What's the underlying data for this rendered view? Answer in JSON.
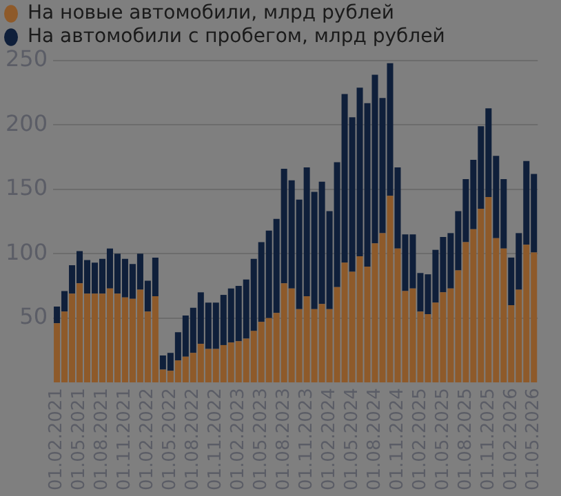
{
  "chart_data": {
    "type": "bar",
    "stacked": true,
    "categories": [
      "01.02.2021",
      null,
      null,
      "01.05.2021",
      null,
      null,
      "01.08.2021",
      null,
      null,
      "01.11.2021",
      null,
      null,
      "01.02.2022",
      null,
      null,
      "01.05.2022",
      null,
      null,
      "01.08.2022",
      null,
      null,
      "01.11.2022",
      null,
      null,
      "01.02.2023",
      null,
      null,
      "01.05.2023",
      null,
      null,
      "01.08.2023",
      null,
      null,
      "01.11.2023",
      null,
      null,
      "01.02.2024",
      null,
      null,
      "01.05.2024",
      null,
      null,
      "01.08.2024",
      null,
      null,
      "01.11.2024",
      null,
      null,
      "01.02.2025",
      null,
      null,
      "01.05.2025",
      null,
      null,
      "01.08.2025",
      null,
      null,
      "01.11.2025",
      null,
      null,
      "01.02.2026",
      null,
      null,
      "01.05.2026"
    ],
    "series": [
      {
        "name": "На новые автомобили, млрд рублей",
        "color": "#8e5a2a",
        "values": [
          46,
          55,
          69,
          77,
          69,
          69,
          69,
          73,
          69,
          66,
          65,
          72,
          55,
          67,
          10,
          9,
          17,
          20,
          23,
          30,
          26,
          26,
          29,
          31,
          32,
          34,
          40,
          47,
          50,
          54,
          77,
          73,
          57,
          67,
          57,
          61,
          57,
          74,
          93,
          86,
          98,
          90,
          108,
          116,
          145,
          104,
          71,
          73,
          55,
          53,
          62,
          70,
          73,
          87,
          109,
          119,
          135,
          144,
          112,
          104,
          60,
          72,
          107,
          101
        ]
      },
      {
        "name": "На автомобили с пробегом, млрд рублей",
        "color": "#0f1f3a",
        "values": [
          13,
          16,
          22,
          25,
          26,
          24,
          27,
          31,
          31,
          30,
          27,
          28,
          24,
          30,
          11,
          14,
          22,
          32,
          35,
          40,
          36,
          36,
          39,
          42,
          43,
          46,
          56,
          62,
          68,
          73,
          89,
          84,
          85,
          100,
          91,
          95,
          76,
          97,
          131,
          120,
          131,
          127,
          131,
          105,
          103,
          63,
          44,
          42,
          30,
          31,
          41,
          43,
          43,
          46,
          49,
          54,
          64,
          69,
          64,
          54,
          37,
          44,
          65,
          61
        ]
      }
    ],
    "ylim": [
      0,
      250
    ],
    "yticks": [
      50,
      100,
      150,
      200,
      250
    ],
    "grid": "y",
    "legend": "top left",
    "marker": "circle"
  }
}
